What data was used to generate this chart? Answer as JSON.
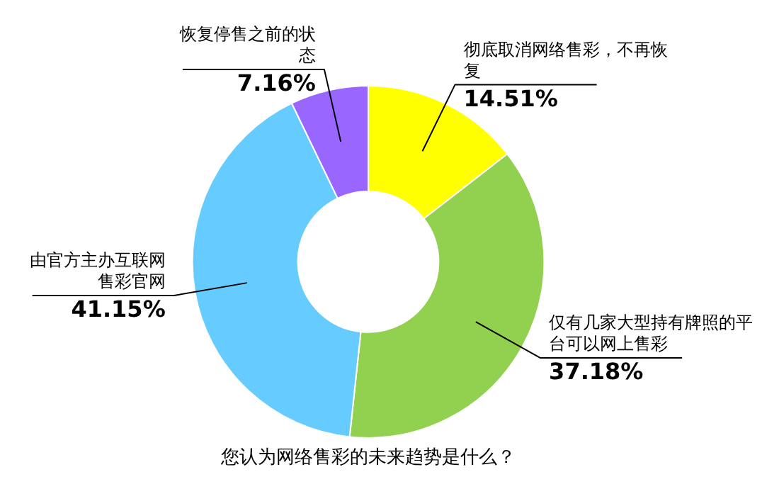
{
  "chart_data": {
    "type": "donut",
    "title": "您认为网络售彩的未来趋势是什么？",
    "categories": [
      "彻底取消网络售彩，不再恢复",
      "仅有几家大型持有牌照的平台可以网上售彩",
      "由官方主办互联网售彩官网",
      "恢复停售之前的状态"
    ],
    "values": [
      14.51,
      37.18,
      41.15,
      7.16
    ],
    "colors": [
      "#ffff00",
      "#92d050",
      "#66ccff",
      "#9966ff"
    ],
    "value_labels": [
      "14.51%",
      "37.18%",
      "41.15%",
      "7.16%"
    ]
  }
}
